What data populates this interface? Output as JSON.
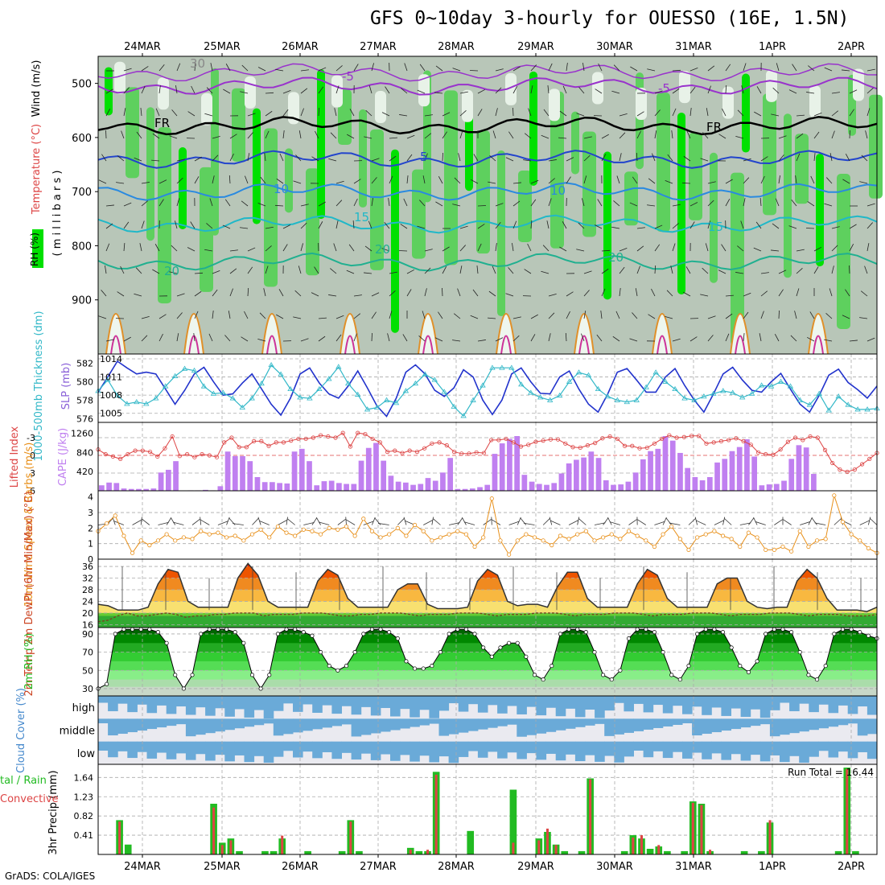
{
  "title": "GFS 0~10day 3-hourly for OUESSO (16E, 1.5N)",
  "credit": "GrADS: COLA/IGES",
  "colors": {
    "green": "#22bb22",
    "bright_green": "#00e000",
    "cape": "#c080f0",
    "lifted": "#dd4444",
    "slp": "#2233cc",
    "thick": "#33b8c8",
    "wind": "#e8901a",
    "cloud": "#6aaad8",
    "grey": "#c8d0c8"
  },
  "chart_data": [
    {
      "type": "heatmap",
      "name": "upper_air",
      "ylabel_parts": [
        "RH (%)",
        "Temperature (°C)",
        "Wind (m/s)"
      ],
      "yunit": "( m i l l i b a r s )",
      "yticks": [
        500,
        600,
        700,
        800,
        900
      ],
      "ylim": [
        1000,
        450
      ],
      "dates_top": [
        "24MAR",
        "25MAR",
        "26MAR",
        "27MAR",
        "28MAR",
        "29MAR",
        "30MAR",
        "31MAR",
        "1APR",
        "2APR"
      ],
      "contour_labels": [
        "-5",
        "-5",
        "FR",
        "FR",
        "5",
        "10",
        "10",
        "15",
        "15",
        "20",
        "20",
        "20",
        "30"
      ]
    },
    {
      "type": "line",
      "name": "thickness_slp",
      "ylabel_left": "1000-500mb Thickness (dm)",
      "ylabel_right": "SLP (mb)",
      "yticks_left": [
        576,
        578,
        580,
        582
      ],
      "yticks_right": [
        1005,
        1008,
        1011,
        1014
      ],
      "series": [
        {
          "name": "SLP",
          "values": [
            1008.5,
            1011,
            1013.6,
            1012.5,
            1011.5,
            1011.8,
            1011.5,
            1009,
            1006.5,
            1008.8,
            1011.5,
            1012.6,
            1010.2,
            1008,
            1008.2,
            1010,
            1011.5,
            1009,
            1006.5,
            1004.7,
            1007.5,
            1011.5,
            1012.5,
            1010,
            1008.2,
            1007.5,
            1009.5,
            1012,
            1009.2,
            1006.2,
            1004.5,
            1007.5,
            1011.8,
            1013,
            1011.5,
            1008.8,
            1007.8,
            1009.2,
            1012.2,
            1011,
            1007.2,
            1004.8,
            1007.2,
            1011.5,
            1012.5,
            1010.2,
            1008.3,
            1008.2,
            1011,
            1012,
            1009,
            1006.5,
            1005.2,
            1008.2,
            1011.8,
            1012.4,
            1010.5,
            1008.5,
            1008.5,
            1011,
            1012.4,
            1009.6,
            1007.2,
            1005.2,
            1008.2,
            1011.5,
            1012.6,
            1010.5,
            1008.8,
            1008.5,
            1010.2,
            1011.6,
            1009,
            1006.5,
            1005.2,
            1008,
            1011.3,
            1012.3,
            1010.1,
            1008.9,
            1007.5,
            1009.5
          ]
        },
        {
          "name": "Thickness",
          "values": [
            579,
            580.2,
            578.5,
            577.6,
            577.8,
            577.6,
            578.2,
            579.5,
            580.6,
            581.4,
            581.2,
            579.5,
            578.7,
            578.8,
            578.2,
            577.2,
            578.2,
            579.8,
            581.8,
            580.8,
            579.2,
            578.3,
            578.2,
            579.2,
            580.3,
            581.6,
            579.8,
            578.6,
            577,
            577.2,
            578,
            577.7,
            579,
            579.8,
            580.8,
            580.2,
            578.9,
            577.3,
            576.3,
            578,
            579.6,
            581.5,
            581.5,
            581.5,
            579.7,
            578.8,
            578.3,
            578,
            578.5,
            580,
            581,
            580.7,
            579.2,
            578.4,
            578,
            577.8,
            578,
            579.4,
            581,
            580,
            579.2,
            578.2,
            578,
            578.4,
            578.7,
            579,
            578.8,
            578.3,
            578.7,
            579.6,
            579.5,
            580,
            579.5,
            578,
            577.5,
            578.7,
            576.9,
            578.4,
            577.5,
            577,
            577,
            577.1
          ]
        }
      ]
    },
    {
      "type": "bar",
      "name": "cape_li",
      "ylabel_left": "Lifted Index",
      "ylabel_right": "CAPE (J/kg)",
      "yticks_left": [
        "-3",
        "0",
        "3",
        "6"
      ],
      "yticks_right": [
        420,
        840,
        1260
      ],
      "cape_values": [
        120,
        180,
        170,
        50,
        40,
        40,
        40,
        50,
        400,
        460,
        650,
        0,
        10,
        10,
        20,
        10,
        100,
        860,
        760,
        760,
        650,
        300,
        190,
        190,
        170,
        160,
        860,
        920,
        650,
        120,
        210,
        220,
        170,
        150,
        150,
        660,
        940,
        1050,
        660,
        330,
        200,
        180,
        130,
        150,
        280,
        220,
        400,
        720,
        40,
        40,
        50,
        80,
        130,
        810,
        1040,
        1140,
        1200,
        350,
        200,
        150,
        130,
        170,
        380,
        600,
        680,
        730,
        860,
        720,
        230,
        130,
        140,
        200,
        400,
        690,
        870,
        920,
        1200,
        1100,
        830,
        500,
        300,
        230,
        300,
        620,
        700,
        870,
        960,
        1130,
        750,
        120,
        140,
        150,
        220,
        700,
        1000,
        950,
        370,
        0,
        0,
        0,
        0,
        0,
        0,
        0,
        0
      ],
      "li_values": [
        -1,
        -0.2,
        0.2,
        0.6,
        -0.2,
        -0.8,
        -0.8,
        -0.6,
        0.2,
        -1.2,
        -3.2,
        0.1,
        -0.2,
        0.3,
        -0.2,
        0,
        0.3,
        -2.2,
        -3,
        -1.4,
        -1.4,
        -2.4,
        -2.4,
        -1.6,
        -2.2,
        -2.2,
        -2.5,
        -2.8,
        -2.8,
        -3,
        -3.4,
        -3.2,
        -3,
        -3.8,
        -1.5,
        -3.8,
        -3.6,
        -2.8,
        -2.2,
        -0.6,
        -0.8,
        -0.4,
        -0.8,
        -0.6,
        -1.2,
        -2,
        -2.2,
        -1.7,
        -0.6,
        -0.3,
        -0.3,
        -0.5,
        -0.4,
        -2.6,
        -2.6,
        -2.8,
        -2.2,
        -1.5,
        -1.8,
        -2.3,
        -2.5,
        -2.7,
        -2.7,
        -2,
        -1.4,
        -1.3,
        -1.7,
        -2.1,
        -2.9,
        -3.2,
        -2.8,
        -1.6,
        -1.6,
        -1.2,
        -1.3,
        -2,
        -2.8,
        -3.4,
        -3,
        -3.1,
        -3.3,
        -3.3,
        -2,
        -2.2,
        -2.4,
        -2.6,
        -2.9,
        -2.4,
        -1.8,
        -0.5,
        -0.2,
        -0.1,
        -1,
        -2.3,
        -3,
        -2.6,
        -3.2,
        -3,
        -0.9,
        1.3,
        2.4,
        2.8,
        2.4,
        1.5,
        0.6,
        -0.4
      ]
    },
    {
      "type": "line",
      "name": "wind10m",
      "ylabel": "10m Wind Speed & Barbs (m/s)",
      "yticks": [
        0,
        1,
        2,
        3,
        4
      ],
      "values": [
        1.8,
        2.3,
        2.8,
        1.5,
        0.4,
        1.2,
        0.9,
        1.2,
        1.6,
        1.2,
        1.4,
        1.3,
        1.8,
        1.6,
        1.7,
        1.4,
        1.5,
        1.2,
        1.6,
        1.9,
        1.4,
        2.1,
        1.7,
        1.5,
        1.9,
        1.8,
        1.6,
        2,
        1.9,
        2.1,
        1.5,
        2.6,
        1.8,
        1.4,
        1.6,
        2,
        1.5,
        2.2,
        1.8,
        1.2,
        1.4,
        1.6,
        1.8,
        1.6,
        0.8,
        1.4,
        3.9,
        1.2,
        0.3,
        1.2,
        1.6,
        1.4,
        1.2,
        0.9,
        1.5,
        1.3,
        1.6,
        1.8,
        1.2,
        1.4,
        1.6,
        1.3,
        1.8,
        1.5,
        1.2,
        0.8,
        1.6,
        2.1,
        1.3,
        0.6,
        1.4,
        1.6,
        1.8,
        1.5,
        1.3,
        0.8,
        1.7,
        1.4,
        0.6,
        0.6,
        0.8,
        0.5,
        1.8,
        0.8,
        1.2,
        1.3,
        4.1,
        2.4,
        1.6,
        1.2,
        0.7,
        0.4
      ]
    },
    {
      "type": "area",
      "name": "temp_dewpt",
      "ylabel": "2m Temp 2m DewPt (6hr Min/Max) (°C)",
      "yticks": [
        16,
        20,
        24,
        28,
        32,
        36
      ],
      "temp": [
        23,
        22.5,
        21,
        21,
        21,
        22,
        30,
        35,
        34,
        24,
        22,
        22,
        22,
        22,
        32,
        37,
        33,
        24,
        22,
        22,
        22,
        22,
        31,
        35,
        33,
        25,
        22,
        22,
        22,
        22,
        28,
        30,
        30,
        23,
        21.5,
        21.5,
        21.5,
        22,
        31,
        35,
        33,
        24,
        22.5,
        23,
        23,
        22,
        29,
        34,
        34,
        25,
        22,
        22,
        22,
        22,
        30,
        35,
        33,
        25,
        22,
        22,
        22,
        22,
        30,
        32,
        32,
        24,
        22,
        21.5,
        22,
        22,
        31,
        35,
        32,
        25,
        21,
        21,
        21,
        20.5,
        22
      ],
      "dewpt": [
        17,
        17.5,
        19,
        20,
        19,
        19,
        19.5,
        20,
        19.5,
        18.5,
        19,
        19,
        19.5,
        19.5,
        20,
        20,
        20,
        19,
        19.5,
        19.5,
        19.5,
        20,
        20,
        20,
        19.5,
        19,
        19,
        19.5,
        19.5,
        20,
        20,
        20,
        19.5,
        19,
        19.5,
        19.5,
        19.5,
        20,
        20,
        20,
        19.5,
        19,
        19.5,
        19.5,
        19.5,
        20,
        20,
        20,
        19.5,
        19,
        19.5,
        19.5,
        19.5,
        20,
        20,
        20,
        19.5,
        19,
        19.5,
        19.5,
        19.5,
        20,
        20,
        20,
        19.5,
        19,
        19.5,
        19.5,
        19.5,
        20,
        20,
        20,
        19.5,
        19,
        19.5,
        19.5,
        19.5,
        19,
        19,
        19,
        19.5
      ]
    },
    {
      "type": "area",
      "name": "rh2m",
      "ylabel": "2m RH (%)",
      "yticks": [
        30,
        50,
        70,
        90
      ],
      "values": [
        30,
        35,
        90,
        95,
        95,
        95,
        95,
        92,
        80,
        45,
        30,
        45,
        90,
        95,
        95,
        95,
        92,
        80,
        45,
        30,
        45,
        90,
        95,
        95,
        92,
        88,
        70,
        55,
        50,
        55,
        70,
        90,
        95,
        95,
        92,
        85,
        60,
        52,
        52,
        55,
        70,
        90,
        95,
        95,
        90,
        75,
        65,
        75,
        80,
        80,
        65,
        45,
        40,
        55,
        90,
        95,
        95,
        92,
        70,
        45,
        40,
        50,
        85,
        95,
        95,
        92,
        70,
        45,
        40,
        55,
        90,
        95,
        95,
        92,
        75,
        55,
        48,
        60,
        90,
        95,
        95,
        92,
        70,
        45,
        40,
        55,
        90,
        95,
        95,
        92,
        88,
        85
      ]
    },
    {
      "type": "heatmap",
      "name": "cloud_cover",
      "ylabel": "Cloud Cover (%)",
      "levels": [
        "high",
        "middle",
        "low"
      ]
    },
    {
      "type": "bar",
      "name": "precip",
      "ylabel": "3hr Precip (mm)",
      "ylabel_side": "tal / Rain",
      "ylabel_side2": "Convective",
      "yticks": [
        "0.41",
        "0.82",
        "1.23",
        "1.64"
      ],
      "annotation": "Run Total = 16.44",
      "dates_bottom": [
        "24MAR",
        "25MAR",
        "26MAR",
        "27MAR",
        "28MAR",
        "29MAR",
        "30MAR",
        "31MAR",
        "1APR",
        "2APR"
      ],
      "total": [
        0,
        0,
        0.73,
        0.21,
        0,
        0,
        0,
        0,
        0,
        0,
        0,
        0,
        0,
        1.08,
        0.25,
        0.34,
        0.07,
        0,
        0,
        0.07,
        0.07,
        0.34,
        0,
        0,
        0.07,
        0,
        0,
        0,
        0.07,
        0.73,
        0.07,
        0,
        0,
        0,
        0,
        0,
        0.14,
        0.07,
        0.07,
        1.76,
        0,
        0,
        0,
        0.5,
        0,
        0,
        0,
        0,
        1.38,
        0,
        0,
        0.34,
        0.48,
        0.21,
        0.07,
        0,
        0.07,
        1.62,
        0,
        0,
        0,
        0.07,
        0.41,
        0.34,
        0.12,
        0.17,
        0.07,
        0,
        0.07,
        1.13,
        1.08,
        0.07,
        0,
        0,
        0,
        0.07,
        0,
        0.07,
        0.68,
        0,
        0,
        0,
        0,
        0,
        0,
        0,
        0.07,
        1.85,
        0.07,
        0,
        0
      ],
      "rain": [
        0,
        0,
        0.7,
        0,
        0,
        0,
        0,
        0,
        0,
        0,
        0,
        0,
        0,
        1,
        0.2,
        0.3,
        0,
        0,
        0,
        0,
        0,
        0.4,
        0,
        0,
        0,
        0,
        0,
        0,
        0,
        0.7,
        0,
        0,
        0,
        0,
        0,
        0,
        0.1,
        0,
        0.1,
        1.7,
        0,
        0,
        0,
        0,
        0,
        0,
        0,
        0,
        0.25,
        0,
        0,
        0.3,
        0.55,
        0.2,
        0,
        0,
        0,
        1.6,
        0,
        0,
        0,
        0,
        0.36,
        0.41,
        0,
        0.2,
        0,
        0,
        0,
        1.1,
        1.05,
        0.1,
        0,
        0,
        0,
        0,
        0,
        0,
        0.73,
        0,
        0,
        0,
        0,
        0,
        0,
        0,
        0,
        1.82,
        0,
        0,
        0
      ]
    }
  ]
}
